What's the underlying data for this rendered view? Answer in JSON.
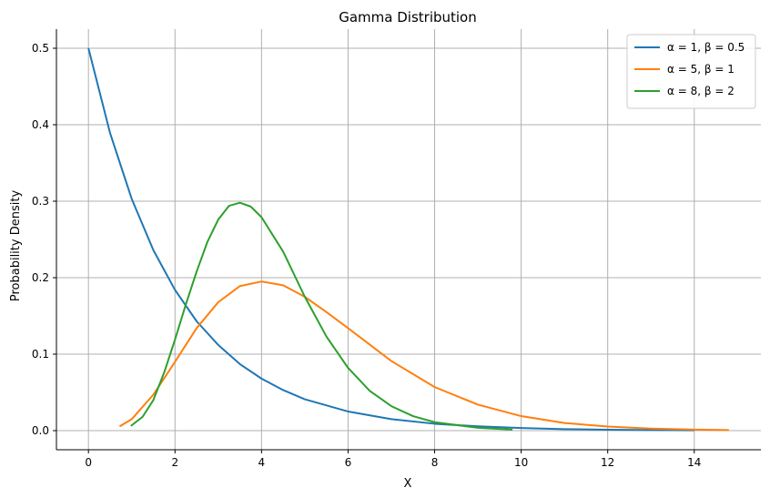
{
  "chart_data": {
    "type": "line",
    "title": "Gamma Distribution",
    "xlabel": "X",
    "ylabel": "Probability Density",
    "xlim": [
      -0.74,
      15.54
    ],
    "ylim": [
      -0.025,
      0.525
    ],
    "xticks": [
      0,
      2,
      4,
      6,
      8,
      10,
      12,
      14
    ],
    "yticks": [
      0.0,
      0.1,
      0.2,
      0.3,
      0.4,
      0.5
    ],
    "xtick_labels": [
      "0",
      "2",
      "4",
      "6",
      "8",
      "10",
      "12",
      "14"
    ],
    "ytick_labels": [
      "0.0",
      "0.1",
      "0.2",
      "0.3",
      "0.4",
      "0.5"
    ],
    "grid": true,
    "legend_position": "top-right",
    "series": [
      {
        "name": "α = 1, β = 0.5",
        "color": "#1f77b4",
        "x": [
          0,
          0.5,
          1,
          1.5,
          2,
          2.5,
          3,
          3.5,
          4,
          4.5,
          5,
          6,
          7,
          8,
          9,
          10,
          11,
          12,
          13,
          14
        ],
        "y": [
          0.5,
          0.389,
          0.303,
          0.236,
          0.184,
          0.143,
          0.112,
          0.087,
          0.068,
          0.053,
          0.041,
          0.025,
          0.015,
          0.009,
          0.0056,
          0.0034,
          0.002,
          0.0012,
          0.0008,
          0.0005
        ]
      },
      {
        "name": "α = 5, β = 1",
        "color": "#ff7f0e",
        "x": [
          0.72,
          1,
          1.5,
          2,
          2.5,
          3,
          3.5,
          4,
          4.5,
          5,
          5.5,
          6,
          7,
          8,
          9,
          10,
          11,
          12,
          13,
          14,
          14.8
        ],
        "y": [
          0.0055,
          0.015,
          0.047,
          0.09,
          0.134,
          0.168,
          0.189,
          0.195,
          0.19,
          0.175,
          0.155,
          0.134,
          0.091,
          0.057,
          0.034,
          0.019,
          0.01,
          0.0053,
          0.0027,
          0.0013,
          0.0008
        ]
      },
      {
        "name": "α = 8, β = 2",
        "color": "#2ca02c",
        "x": [
          0.98,
          1.25,
          1.5,
          1.75,
          2,
          2.25,
          2.5,
          2.75,
          3,
          3.25,
          3.5,
          3.75,
          4,
          4.5,
          5,
          5.5,
          6,
          6.5,
          7,
          7.5,
          8,
          9,
          9.8
        ],
        "y": [
          0.0061,
          0.018,
          0.04,
          0.076,
          0.119,
          0.165,
          0.208,
          0.247,
          0.276,
          0.294,
          0.298,
          0.293,
          0.279,
          0.234,
          0.175,
          0.123,
          0.082,
          0.052,
          0.032,
          0.019,
          0.011,
          0.0037,
          0.0013
        ]
      }
    ]
  }
}
